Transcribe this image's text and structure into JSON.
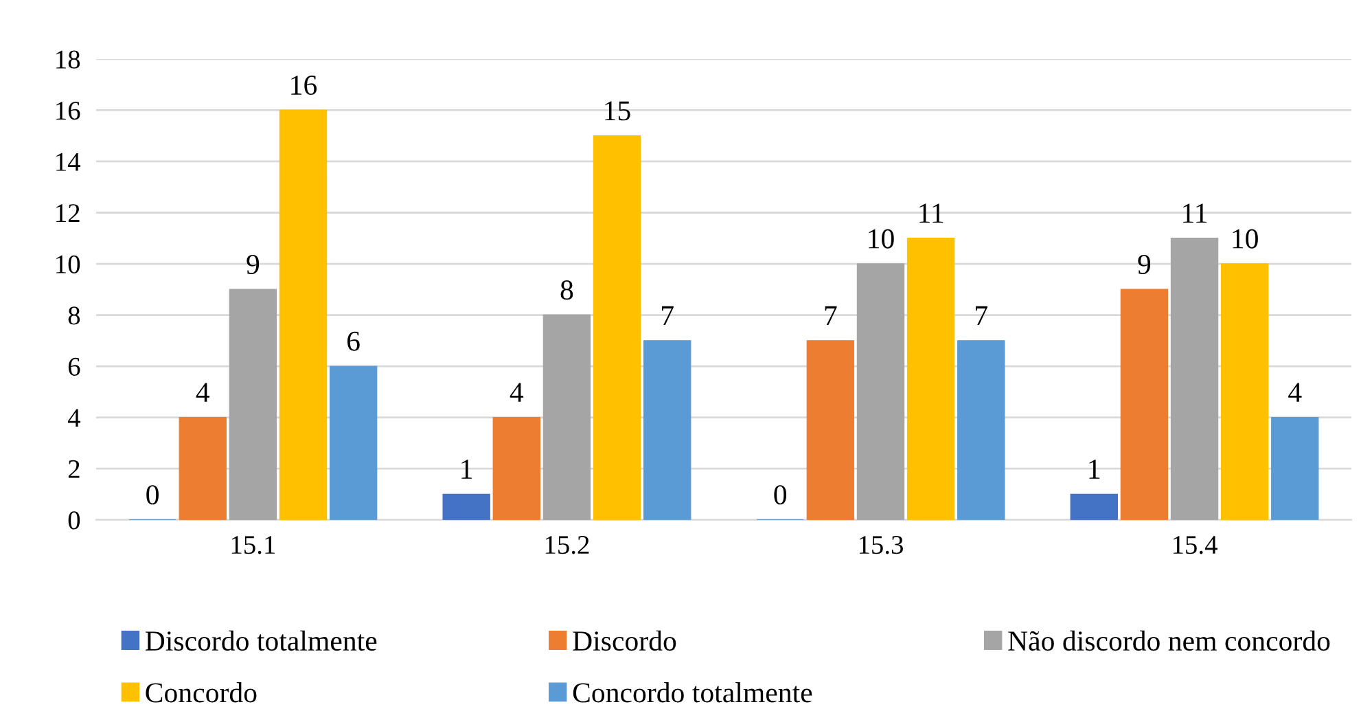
{
  "chart_data": {
    "type": "bar",
    "categories": [
      "15.1",
      "15.2",
      "15.3",
      "15.4"
    ],
    "series": [
      {
        "name": "Discordo totalmente",
        "color": "#4472c4",
        "values": [
          0,
          1,
          0,
          1
        ]
      },
      {
        "name": "Discordo",
        "color": "#ed7d31",
        "values": [
          4,
          4,
          7,
          9
        ]
      },
      {
        "name": "Não discordo nem concordo",
        "color": "#a5a5a5",
        "values": [
          9,
          8,
          10,
          11
        ]
      },
      {
        "name": "Concordo",
        "color": "#ffc000",
        "values": [
          16,
          15,
          11,
          10
        ]
      },
      {
        "name": "Concordo totalmente",
        "color": "#5b9bd5",
        "values": [
          6,
          7,
          7,
          4
        ]
      }
    ],
    "ylim": [
      0,
      18
    ],
    "yticks": [
      0,
      2,
      4,
      6,
      8,
      10,
      12,
      14,
      16,
      18
    ],
    "grid": "y",
    "legend": "bottom",
    "data_labels": true
  }
}
